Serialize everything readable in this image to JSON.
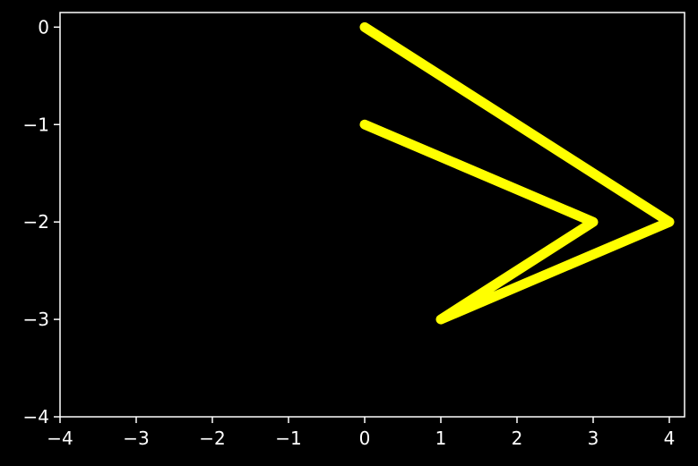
{
  "chart_data": {
    "type": "line",
    "title": "",
    "xlabel": "",
    "ylabel": "",
    "xlim": [
      -4,
      4.2
    ],
    "ylim": [
      -4,
      0.15
    ],
    "x_ticks": [
      -4,
      -3,
      -2,
      -1,
      0,
      1,
      2,
      3,
      4
    ],
    "y_ticks": [
      0,
      -1,
      -2,
      -3,
      -4
    ],
    "x_tick_labels": [
      "−4",
      "−3",
      "−2",
      "−1",
      "0",
      "1",
      "2",
      "3",
      "4"
    ],
    "y_tick_labels": [
      "0",
      "−1",
      "−2",
      "−3",
      "−4"
    ],
    "grid": false,
    "legend": false,
    "series": [
      {
        "color": "#ffff00",
        "points": [
          [
            0,
            0
          ],
          [
            4,
            -2
          ],
          [
            1,
            -3
          ],
          [
            3,
            -2
          ],
          [
            0,
            -1
          ]
        ]
      }
    ],
    "colors": {
      "background": "#000000",
      "axes": "#ffffff",
      "line": "#ffff00"
    }
  }
}
